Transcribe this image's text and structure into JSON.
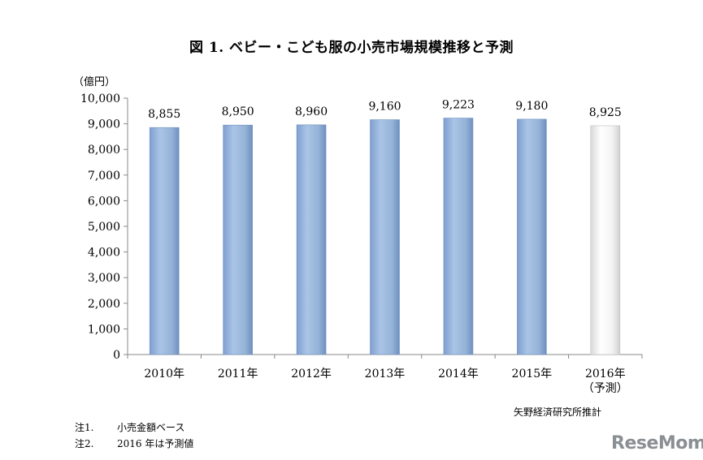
{
  "chart_data": {
    "type": "bar",
    "title": "図 1.  ベビー・こども服の小売市場規模推移と予測",
    "ylabel": "（億円）",
    "ylim": [
      0,
      10000
    ],
    "yticks": [
      "0",
      "1,000",
      "2,000",
      "3,000",
      "4,000",
      "5,000",
      "6,000",
      "7,000",
      "8,000",
      "9,000",
      "10,000"
    ],
    "categories": [
      "2010年",
      "2011年",
      "2012年",
      "2013年",
      "2014年",
      "2015年",
      "2016年"
    ],
    "category_sublabels": [
      "",
      "",
      "",
      "",
      "",
      "",
      "（予測）"
    ],
    "values": [
      8855,
      8950,
      8960,
      9160,
      9223,
      9180,
      8925
    ],
    "value_labels": [
      "8,855",
      "8,950",
      "8,960",
      "9,160",
      "9,223",
      "9,180",
      "8,925"
    ],
    "forecast": [
      false,
      false,
      false,
      false,
      false,
      false,
      true
    ],
    "grid": false,
    "colors": {
      "actual": "#95b3d7",
      "forecast": "#f2f2f2"
    }
  },
  "source": "矢野経済研究所推計",
  "notes": [
    {
      "label": "注1.",
      "text": "小売金額ベース"
    },
    {
      "label": "注2.",
      "text": "2016 年は予測値"
    }
  ],
  "watermark": "ReseMom"
}
